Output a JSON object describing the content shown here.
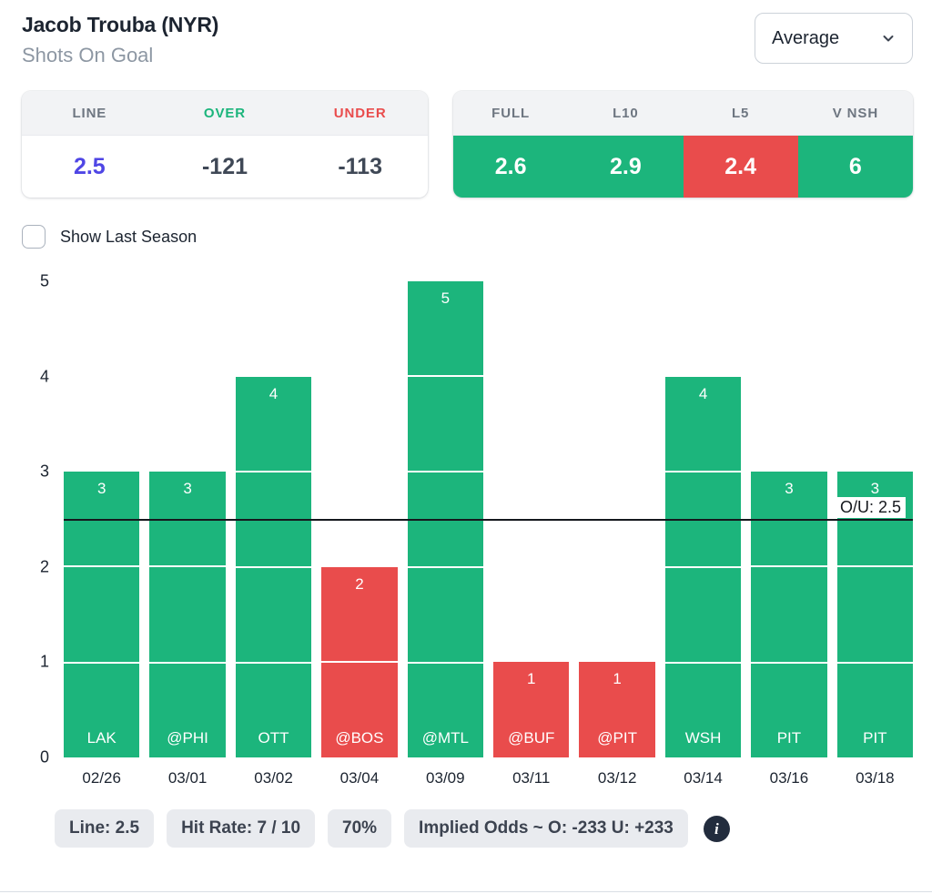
{
  "header": {
    "title": "Jacob Trouba (NYR)",
    "subtitle": "Shots On Goal",
    "aggregation_dropdown": {
      "value": "Average"
    }
  },
  "line_card": {
    "headers": [
      "LINE",
      "OVER",
      "UNDER"
    ],
    "line": "2.5",
    "over": "-121",
    "under": "-113"
  },
  "splits_card": {
    "headers": [
      "FULL",
      "L10",
      "L5",
      "V NSH"
    ],
    "values": [
      {
        "label": "2.6",
        "color": "green"
      },
      {
        "label": "2.9",
        "color": "green"
      },
      {
        "label": "2.4",
        "color": "red"
      },
      {
        "label": "6",
        "color": "green"
      }
    ]
  },
  "show_last_season": {
    "label": "Show Last Season",
    "checked": false
  },
  "chart_data": {
    "type": "bar",
    "title": "",
    "xlabel": "",
    "ylabel": "",
    "categories": [
      "02/26",
      "03/01",
      "03/02",
      "03/04",
      "03/09",
      "03/11",
      "03/12",
      "03/14",
      "03/16",
      "03/18"
    ],
    "opponents": [
      "LAK",
      "@PHI",
      "OTT",
      "@BOS",
      "@MTL",
      "@BUF",
      "@PIT",
      "WSH",
      "PIT",
      "PIT"
    ],
    "values": [
      3,
      3,
      4,
      2,
      5,
      1,
      1,
      4,
      3,
      3
    ],
    "colors": [
      "green",
      "green",
      "green",
      "red",
      "green",
      "red",
      "red",
      "green",
      "green",
      "green"
    ],
    "prop_line": 2.5,
    "prop_line_label": "O/U: 2.5",
    "ylim": [
      0,
      5
    ],
    "yticks": [
      0,
      1,
      2,
      3,
      4,
      5
    ],
    "legend": "none",
    "grid": "off"
  },
  "footer": {
    "badges": [
      "Line: 2.5",
      "Hit Rate: 7 / 10",
      "70%",
      "Implied Odds ~ O: -233 U: +233"
    ],
    "info_icon": "i"
  },
  "colors": {
    "green": "#1cb57c",
    "red": "#e94c4c",
    "line": "#4f46e5"
  }
}
